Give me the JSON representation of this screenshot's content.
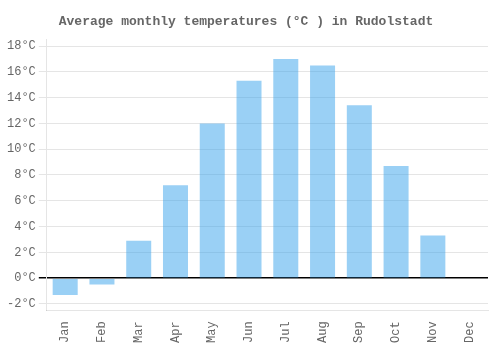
{
  "chart_data": {
    "type": "bar",
    "title": "Average monthly temperatures (°C ) in Rudolstadt",
    "categories": [
      "Jan",
      "Feb",
      "Mar",
      "Apr",
      "May",
      "Jun",
      "Jul",
      "Aug",
      "Sep",
      "Oct",
      "Nov",
      "Dec"
    ],
    "values": [
      -1.3,
      -0.5,
      2.9,
      7.2,
      12.0,
      15.3,
      17.0,
      16.5,
      13.4,
      8.7,
      3.3,
      0.0
    ],
    "ylim": [
      -2.5,
      18.5
    ],
    "yticks": [
      {
        "value": -2,
        "label": "-2°C"
      },
      {
        "value": 0,
        "label": "0°C"
      },
      {
        "value": 2,
        "label": "2°C"
      },
      {
        "value": 4,
        "label": "4°C"
      },
      {
        "value": 6,
        "label": "6°C"
      },
      {
        "value": 8,
        "label": "8°C"
      },
      {
        "value": 10,
        "label": "10°C"
      },
      {
        "value": 12,
        "label": "12°C"
      },
      {
        "value": 14,
        "label": "14°C"
      },
      {
        "value": 16,
        "label": "16°C"
      },
      {
        "value": 18,
        "label": "18°C"
      }
    ],
    "grid": true
  }
}
